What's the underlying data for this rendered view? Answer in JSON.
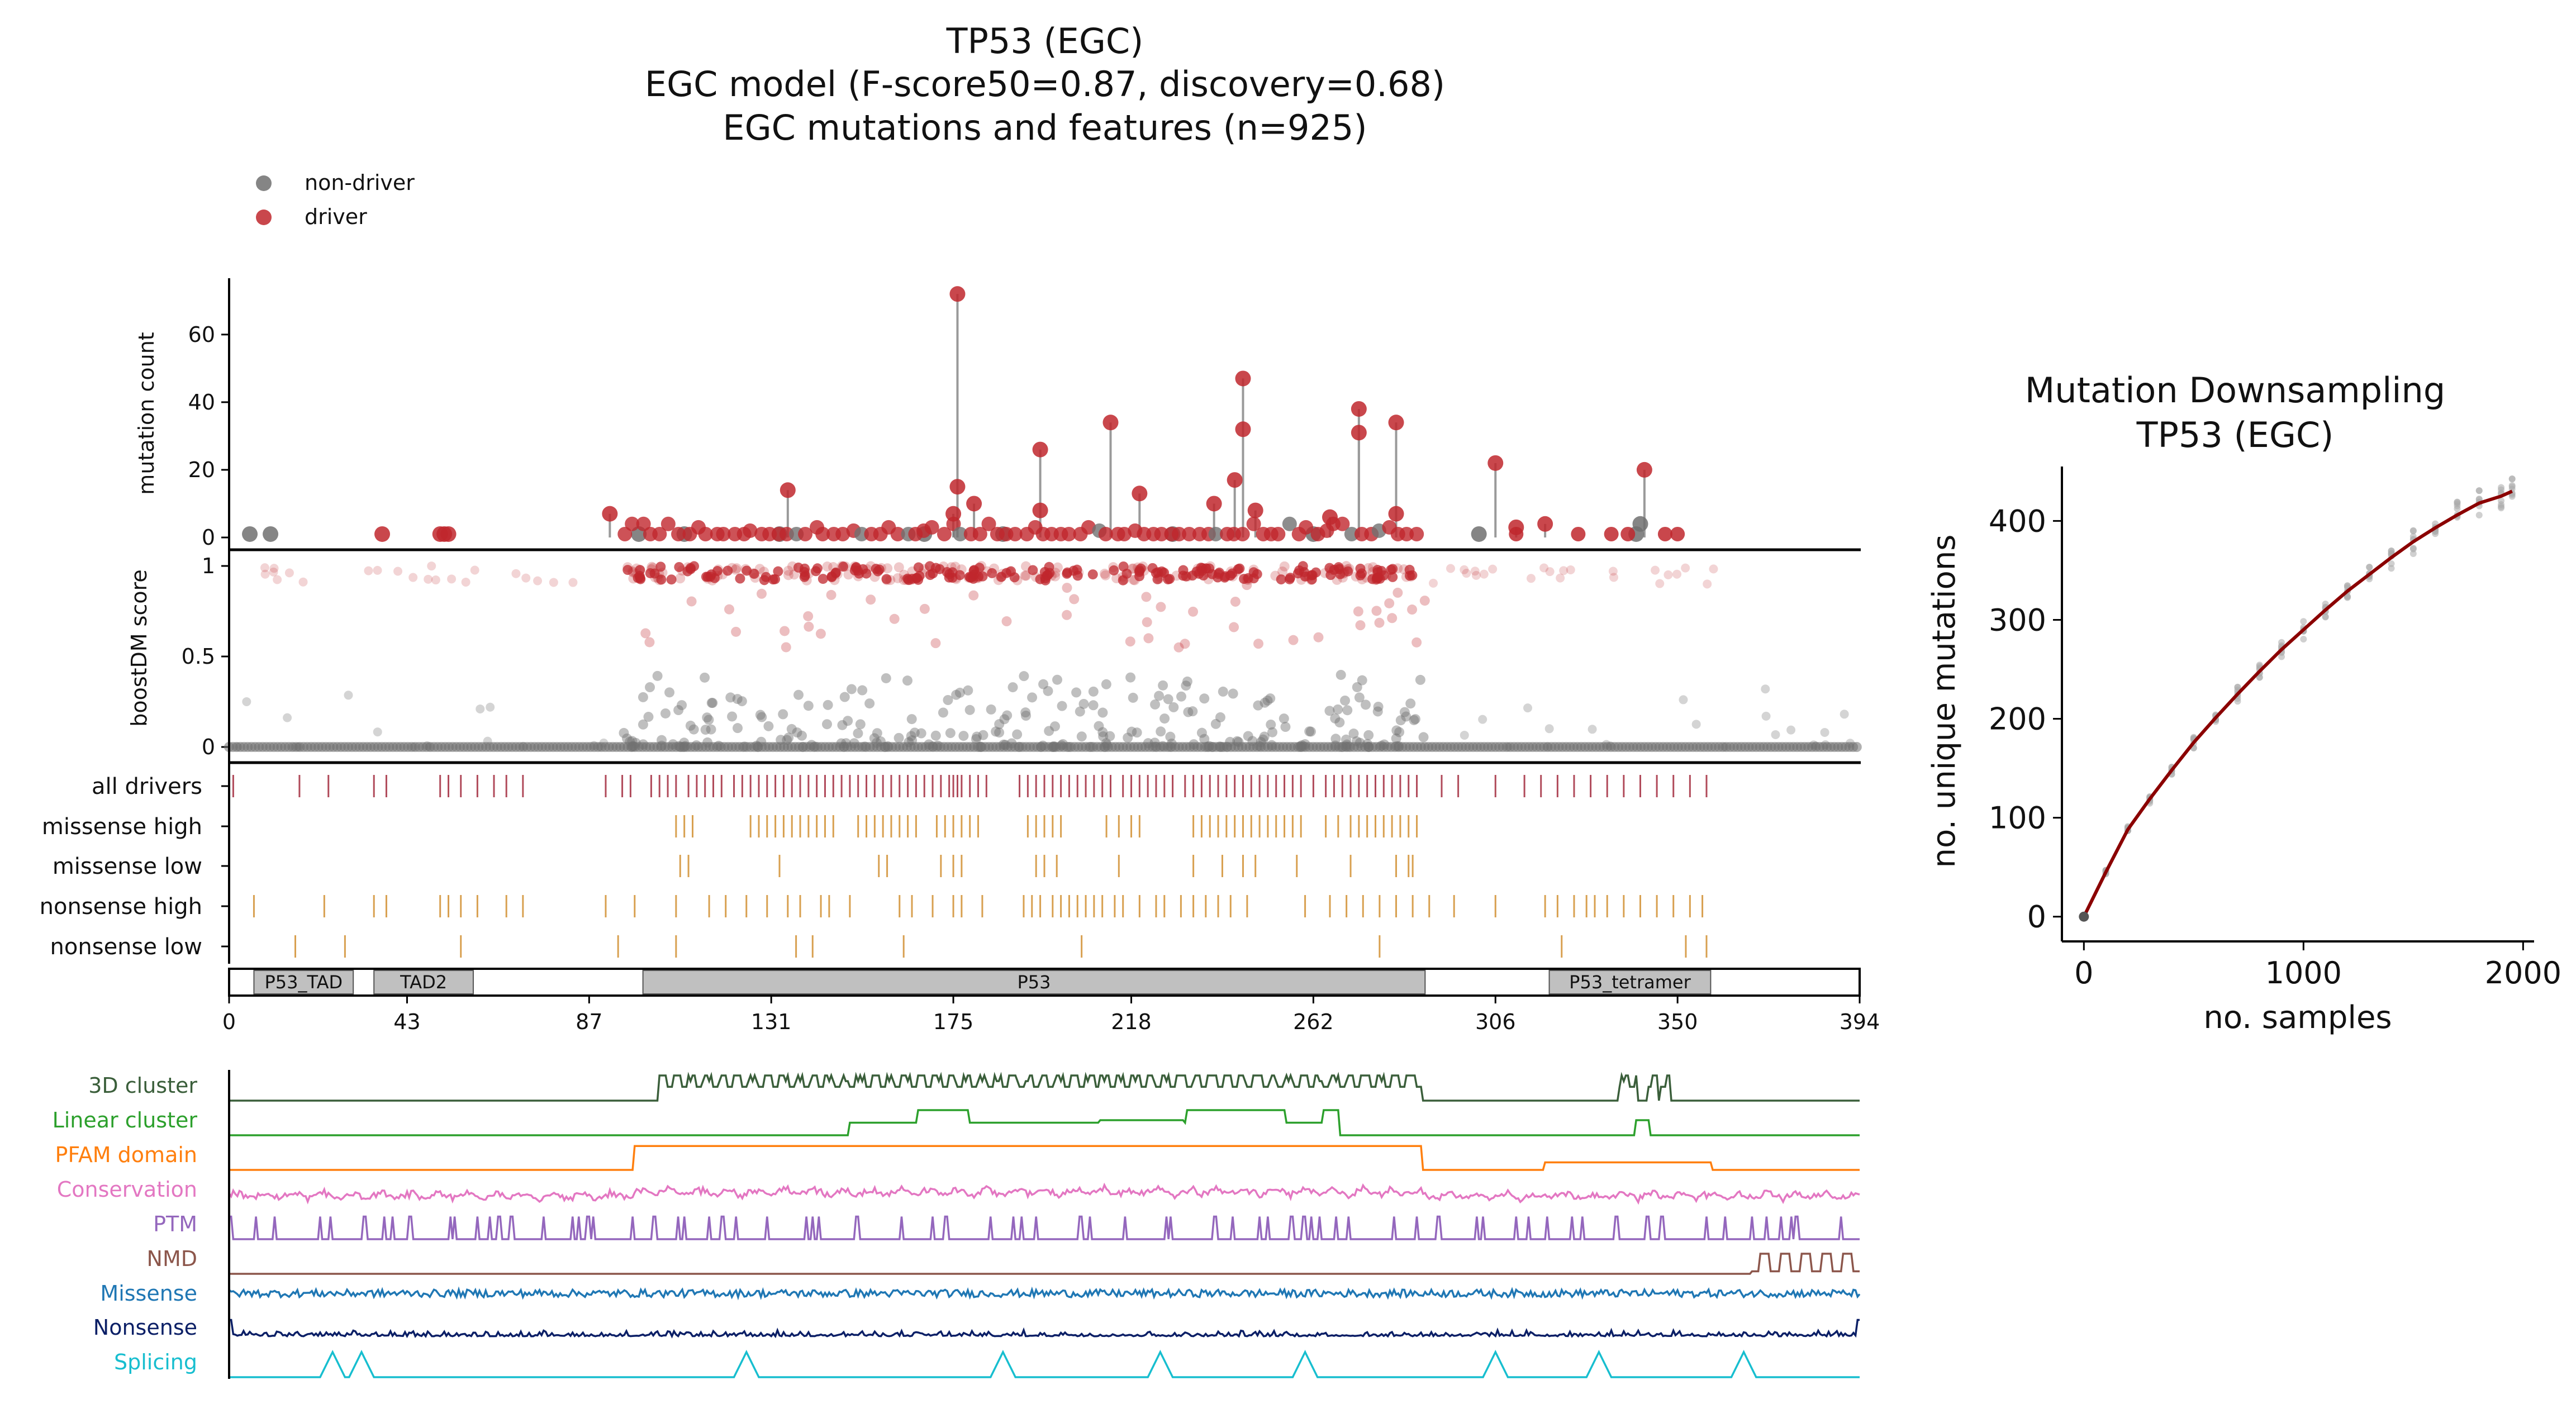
{
  "main_title": {
    "line1": "TP53 (EGC)",
    "line2": "EGC model (F-score50=0.87, discovery=0.68)",
    "line3": "EGC mutations and features (n=925)"
  },
  "legend": {
    "items": [
      {
        "label": "non-driver",
        "color": "#707070"
      },
      {
        "label": "driver",
        "color": "#c0272d"
      }
    ],
    "placement": "top-left"
  },
  "colors": {
    "driver": "#c0272d",
    "non_driver": "#707070",
    "stem": "#9a9a9a",
    "track_drivers": "#b04a5a",
    "track_other": "#d8a050",
    "domain_fill": "#c0c0c0",
    "downsampling_line": "#8b0000",
    "downsampling_points": "#aaaaaa"
  },
  "chart_data": [
    {
      "type": "scatter",
      "panel": "mutation-count-lollipop",
      "ylabel": "mutation count",
      "yticks": [
        "0",
        "20",
        "40",
        "60"
      ],
      "ylim": [
        0,
        75
      ],
      "xlim": [
        0,
        394
      ],
      "driver_peaks": [
        {
          "x": 176,
          "y": 72
        },
        {
          "x": 245,
          "y": 47
        },
        {
          "x": 273,
          "y": 38
        },
        {
          "x": 282,
          "y": 34
        },
        {
          "x": 213,
          "y": 34
        },
        {
          "x": 245,
          "y": 32
        },
        {
          "x": 273,
          "y": 31
        },
        {
          "x": 196,
          "y": 26
        },
        {
          "x": 306,
          "y": 22
        },
        {
          "x": 342,
          "y": 20
        },
        {
          "x": 243,
          "y": 17
        },
        {
          "x": 176,
          "y": 15
        },
        {
          "x": 135,
          "y": 14
        },
        {
          "x": 220,
          "y": 13
        },
        {
          "x": 180,
          "y": 10
        },
        {
          "x": 238,
          "y": 10
        },
        {
          "x": 248,
          "y": 8
        },
        {
          "x": 196,
          "y": 8
        },
        {
          "x": 92,
          "y": 7
        },
        {
          "x": 175,
          "y": 7
        },
        {
          "x": 282,
          "y": 7
        },
        {
          "x": 266,
          "y": 6
        },
        {
          "x": 318,
          "y": 4
        },
        {
          "x": 311,
          "y": 3
        },
        {
          "x": 37,
          "y": 1
        },
        {
          "x": 51,
          "y": 1
        },
        {
          "x": 52,
          "y": 1
        },
        {
          "x": 53,
          "y": 1
        }
      ],
      "non_driver_points": [
        {
          "x": 5,
          "y": 1
        },
        {
          "x": 10,
          "y": 1
        },
        {
          "x": 99,
          "y": 1
        },
        {
          "x": 110,
          "y": 1
        },
        {
          "x": 133,
          "y": 1
        },
        {
          "x": 168,
          "y": 1
        },
        {
          "x": 187,
          "y": 1
        },
        {
          "x": 228,
          "y": 1
        },
        {
          "x": 262,
          "y": 1
        },
        {
          "x": 302,
          "y": 1
        },
        {
          "x": 340,
          "y": 1
        },
        {
          "x": 341,
          "y": 4
        }
      ],
      "driver_baseline_range": [
        95,
        288
      ],
      "driver_sparse_tail": [
        311,
        326,
        334,
        338,
        347,
        350
      ]
    },
    {
      "type": "scatter",
      "panel": "boostdm-score",
      "ylabel": "boostDM score",
      "yticks": [
        "0",
        "0.5",
        "1"
      ],
      "ylim": [
        0,
        1.05
      ],
      "xlim": [
        0,
        394
      ],
      "notes_visible": [],
      "summary": {
        "driver_high_region": [
          96,
          288
        ],
        "driver_dense_clusters": [
          [
            125,
            185
          ],
          [
            235,
            250
          ],
          [
            270,
            285
          ]
        ],
        "zero_baseline_range": [
          0,
          394
        ]
      }
    },
    {
      "type": "table",
      "panel": "consequence-tracks",
      "rows": [
        {
          "label": "all drivers",
          "color": "#b04a5a",
          "positions": [
            1,
            17,
            24,
            35,
            38,
            51,
            53,
            56,
            60,
            64,
            67,
            71,
            91,
            95,
            97,
            102,
            104,
            106,
            108,
            111,
            113,
            115,
            117,
            119,
            122,
            124,
            126,
            128,
            130,
            132,
            134,
            136,
            138,
            140,
            142,
            144,
            146,
            148,
            150,
            152,
            154,
            156,
            158,
            160,
            162,
            164,
            166,
            168,
            170,
            172,
            174,
            175,
            176,
            177,
            179,
            181,
            183,
            191,
            193,
            195,
            197,
            199,
            201,
            203,
            205,
            207,
            209,
            211,
            213,
            216,
            218,
            220,
            222,
            224,
            226,
            228,
            231,
            233,
            235,
            237,
            239,
            241,
            243,
            245,
            247,
            249,
            251,
            253,
            255,
            257,
            259,
            262,
            265,
            267,
            269,
            271,
            273,
            275,
            277,
            279,
            281,
            283,
            285,
            287,
            293,
            297,
            306,
            313,
            317,
            321,
            325,
            329,
            333,
            337,
            341,
            345,
            349,
            353,
            357
          ]
        },
        {
          "label": "missense high",
          "color": "#d8a050",
          "positions": [
            108,
            110,
            112,
            126,
            128,
            130,
            132,
            134,
            136,
            138,
            140,
            142,
            144,
            146,
            152,
            154,
            156,
            158,
            160,
            162,
            164,
            166,
            171,
            173,
            175,
            177,
            179,
            181,
            193,
            195,
            197,
            199,
            201,
            212,
            215,
            218,
            220,
            233,
            235,
            237,
            239,
            241,
            243,
            245,
            247,
            249,
            251,
            253,
            255,
            257,
            259,
            265,
            268,
            271,
            273,
            275,
            277,
            279,
            281,
            283,
            285,
            287
          ]
        },
        {
          "label": "missense low",
          "color": "#d8a050",
          "positions": [
            109,
            111,
            133,
            157,
            159,
            172,
            175,
            177,
            195,
            197,
            200,
            215,
            233,
            240,
            245,
            248,
            258,
            271,
            282,
            285,
            286
          ]
        },
        {
          "label": "nonsense high",
          "color": "#d8a050",
          "positions": [
            6,
            23,
            35,
            38,
            51,
            53,
            56,
            60,
            67,
            71,
            91,
            98,
            108,
            116,
            120,
            125,
            130,
            135,
            138,
            143,
            145,
            150,
            162,
            165,
            170,
            175,
            177,
            182,
            192,
            194,
            196,
            199,
            201,
            203,
            205,
            207,
            209,
            211,
            214,
            216,
            220,
            224,
            226,
            230,
            233,
            236,
            239,
            242,
            246,
            260,
            266,
            270,
            274,
            278,
            282,
            286,
            290,
            296,
            306,
            318,
            321,
            325,
            328,
            330,
            333,
            337,
            341,
            345,
            349,
            353,
            356
          ]
        },
        {
          "label": "nonsense low",
          "color": "#d8a050",
          "positions": [
            16,
            28,
            56,
            94,
            108,
            137,
            141,
            163,
            206,
            278,
            322,
            352,
            357
          ]
        }
      ]
    },
    {
      "type": "bar",
      "panel": "protein-domains",
      "xlim": [
        0,
        394
      ],
      "xticks": [
        "0",
        "43",
        "87",
        "131",
        "175",
        "218",
        "262",
        "306",
        "350",
        "394"
      ],
      "domains": [
        {
          "name": "P53_TAD",
          "start": 6,
          "end": 30
        },
        {
          "name": "TAD2",
          "start": 35,
          "end": 59
        },
        {
          "name": "P53",
          "start": 100,
          "end": 289
        },
        {
          "name": "P53_tetramer",
          "start": 319,
          "end": 358
        }
      ]
    },
    {
      "type": "line",
      "panel": "feature-tracks",
      "xlim": [
        0,
        394
      ],
      "tracks": [
        {
          "label": "3D cluster",
          "color": "#3a5e3a"
        },
        {
          "label": "Linear cluster",
          "color": "#2ca02c"
        },
        {
          "label": "PFAM domain",
          "color": "#ff7f0e"
        },
        {
          "label": "Conservation",
          "color": "#e377c2"
        },
        {
          "label": "PTM",
          "color": "#9467bd"
        },
        {
          "label": "NMD",
          "color": "#8c564b"
        },
        {
          "label": "Missense",
          "color": "#1f77b4"
        },
        {
          "label": "Nonsense",
          "color": "#0b1f66"
        },
        {
          "label": "Splicing",
          "color": "#17becf"
        }
      ],
      "segments": {
        "3D cluster": [
          [
            104,
            288
          ],
          [
            336,
            340
          ],
          [
            343,
            345
          ],
          [
            346,
            348
          ]
        ],
        "Linear cluster": [
          [
            150,
            268
          ],
          [
            340,
            343
          ]
        ],
        "PFAM domain": [
          [
            98,
            288
          ],
          [
            318,
            358
          ]
        ],
        "NMD": [
          [
            368,
            394
          ]
        ],
        "Splicing_peaks": [
          25,
          32,
          125,
          187,
          225,
          260,
          306,
          331,
          366
        ]
      }
    },
    {
      "type": "line",
      "panel": "mutation-downsampling",
      "title_line1": "Mutation Downsampling",
      "title_line2": "TP53 (EGC)",
      "xlabel": "no. samples",
      "ylabel": "no. unique mutations",
      "xlim": [
        -100,
        2050
      ],
      "ylim": [
        -25,
        455
      ],
      "xticks": [
        "0",
        "1000",
        "2000"
      ],
      "yticks": [
        "0",
        "100",
        "200",
        "300",
        "400"
      ],
      "x": [
        0,
        100,
        200,
        300,
        400,
        500,
        600,
        700,
        800,
        900,
        1000,
        1100,
        1200,
        1300,
        1400,
        1500,
        1600,
        1700,
        1800,
        1900,
        1950
      ],
      "y": [
        0,
        45,
        88,
        119,
        148,
        176,
        201,
        225,
        248,
        270,
        290,
        310,
        329,
        346,
        363,
        379,
        393,
        406,
        418,
        425,
        430
      ]
    }
  ]
}
